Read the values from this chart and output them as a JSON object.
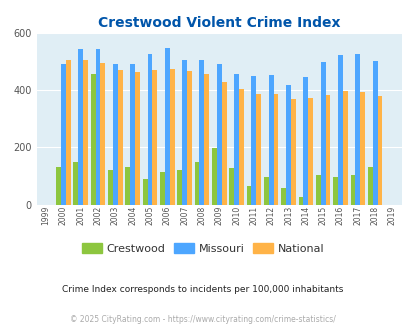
{
  "title": "Crestwood Violent Crime Index",
  "years": [
    1999,
    2000,
    2001,
    2002,
    2003,
    2004,
    2005,
    2006,
    2007,
    2008,
    2009,
    2010,
    2011,
    2012,
    2013,
    2014,
    2015,
    2016,
    2017,
    2018,
    2019
  ],
  "crestwood": [
    0,
    133,
    148,
    455,
    120,
    133,
    88,
    113,
    122,
    150,
    197,
    128,
    65,
    97,
    57,
    25,
    103,
    97,
    103,
    130,
    0
  ],
  "missouri": [
    0,
    493,
    545,
    545,
    490,
    493,
    525,
    547,
    507,
    507,
    493,
    457,
    448,
    452,
    418,
    445,
    500,
    522,
    527,
    503,
    0
  ],
  "national": [
    0,
    506,
    504,
    494,
    472,
    463,
    469,
    474,
    466,
    455,
    430,
    404,
    388,
    387,
    368,
    373,
    383,
    397,
    394,
    381,
    0
  ],
  "crestwood_color": "#8dc63f",
  "missouri_color": "#4da6ff",
  "national_color": "#ffb347",
  "bg_color": "#e0eef5",
  "title_color": "#0055aa",
  "ylim": [
    0,
    600
  ],
  "yticks": [
    0,
    200,
    400,
    600
  ],
  "subtitle": "Crime Index corresponds to incidents per 100,000 inhabitants",
  "footer": "© 2025 CityRating.com - https://www.cityrating.com/crime-statistics/",
  "subtitle_color": "#222222",
  "footer_color": "#aaaaaa"
}
